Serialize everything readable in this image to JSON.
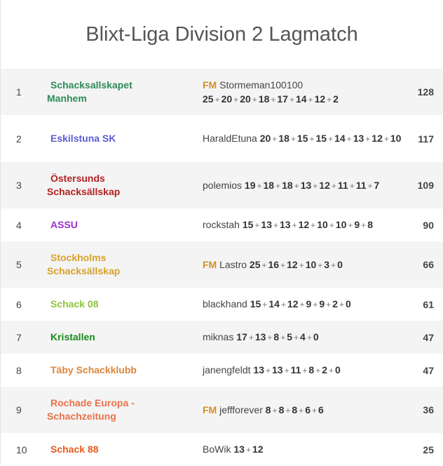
{
  "page": {
    "title": "Blixt-Liga Division 2 Lagmatch"
  },
  "rows": [
    {
      "rank": "1",
      "team": "Schacksallskapet Manhem",
      "team_color": "#2e8b57",
      "fm": "FM",
      "player": "Stormeman100100",
      "scores": [
        "25",
        "20",
        "20",
        "18",
        "17",
        "14",
        "12",
        "2"
      ],
      "total": "128"
    },
    {
      "rank": "2",
      "team": "Eskilstuna SK",
      "team_color": "#5b5bd6",
      "fm": "",
      "player": "HaraldEtuna",
      "scores": [
        "20",
        "18",
        "15",
        "15",
        "14",
        "13",
        "12",
        "10"
      ],
      "total": "117"
    },
    {
      "rank": "3",
      "team": "Östersunds Schacksällskap",
      "team_color": "#b22222",
      "fm": "",
      "player": "polemios",
      "scores": [
        "19",
        "18",
        "18",
        "13",
        "12",
        "11",
        "11",
        "7"
      ],
      "total": "109"
    },
    {
      "rank": "4",
      "team": "ASSU",
      "team_color": "#9932cc",
      "fm": "",
      "player": "rockstah",
      "scores": [
        "15",
        "13",
        "13",
        "12",
        "10",
        "10",
        "9",
        "8"
      ],
      "total": "90"
    },
    {
      "rank": "5",
      "team": "Stockholms Schacksällskap",
      "team_color": "#d8a22a",
      "fm": "FM",
      "player": "Lastro",
      "scores": [
        "25",
        "16",
        "12",
        "10",
        "3",
        "0"
      ],
      "total": "66"
    },
    {
      "rank": "6",
      "team": "Schack 08",
      "team_color": "#8ac43a",
      "fm": "",
      "player": "blackhand",
      "scores": [
        "15",
        "14",
        "12",
        "9",
        "9",
        "2",
        "0"
      ],
      "total": "61"
    },
    {
      "rank": "7",
      "team": "Kristallen",
      "team_color": "#1a8a1a",
      "fm": "",
      "player": "miknas",
      "scores": [
        "17",
        "13",
        "8",
        "5",
        "4",
        "0"
      ],
      "total": "47"
    },
    {
      "rank": "8",
      "team": "Täby Schackklubb",
      "team_color": "#d9863a",
      "fm": "",
      "player": "janengfeldt",
      "scores": [
        "13",
        "13",
        "11",
        "8",
        "2",
        "0"
      ],
      "total": "47"
    },
    {
      "rank": "9",
      "team": "Rochade Europa - Schachzeitung",
      "team_color": "#e8724a",
      "fm": "FM",
      "player": "jeffforever",
      "scores": [
        "8",
        "8",
        "8",
        "6",
        "6"
      ],
      "total": "36"
    },
    {
      "rank": "10",
      "team": "Schack 88",
      "team_color": "#e85a1a",
      "fm": "",
      "player": "BoWik",
      "scores": [
        "13",
        "12"
      ],
      "total": "25"
    }
  ]
}
